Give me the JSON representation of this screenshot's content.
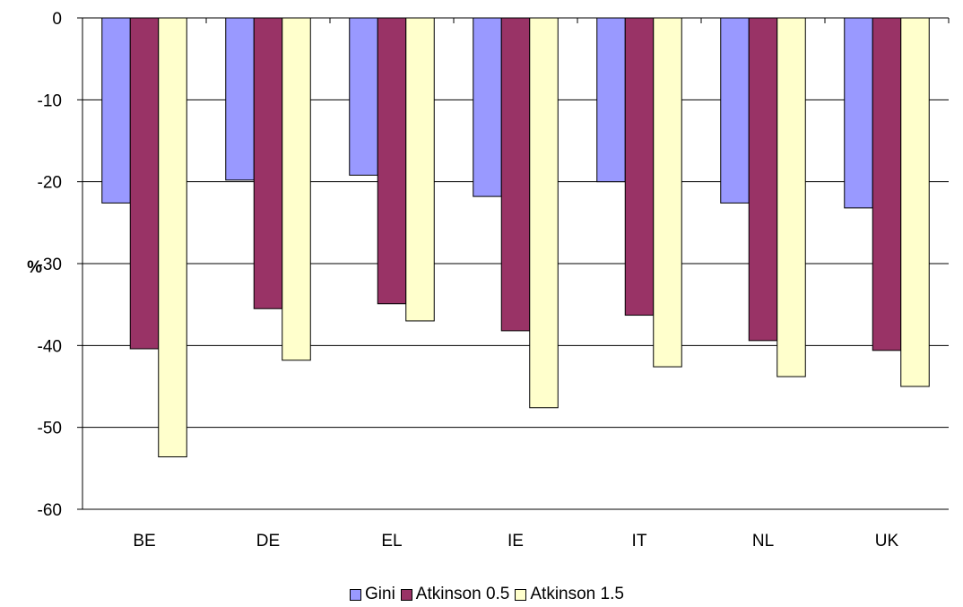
{
  "chart_data": {
    "type": "bar",
    "categories": [
      "BE",
      "DE",
      "EL",
      "IE",
      "IT",
      "NL",
      "UK"
    ],
    "series": [
      {
        "name": "Gini",
        "color": "#9999ff",
        "values": [
          -22.6,
          -19.8,
          -19.2,
          -21.8,
          -20.0,
          -22.6,
          -23.2
        ]
      },
      {
        "name": "Atkinson 0.5",
        "color": "#993366",
        "values": [
          -40.4,
          -35.5,
          -34.9,
          -38.2,
          -36.3,
          -39.4,
          -40.6
        ]
      },
      {
        "name": "Atkinson 1.5",
        "color": "#ffffcc",
        "values": [
          -53.6,
          -41.8,
          -37.0,
          -47.6,
          -42.6,
          -43.8,
          -45.0
        ]
      }
    ],
    "ylabel": "%",
    "ylim": [
      -60,
      0
    ],
    "yticks": [
      "0",
      "-10",
      "-20",
      "-30",
      "-40",
      "-50",
      "-60"
    ],
    "grid": true,
    "legend_position": "bottom"
  }
}
